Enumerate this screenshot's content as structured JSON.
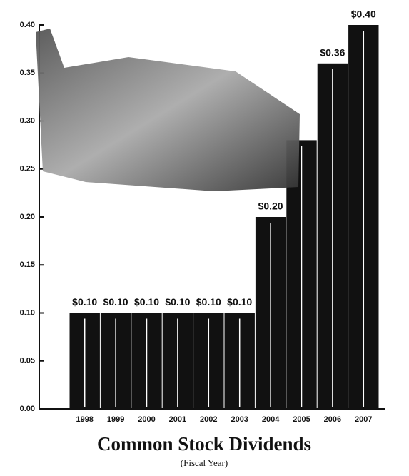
{
  "chart_data": {
    "type": "bar",
    "title": "Common Stock Dividends",
    "subtitle": "(Fiscal Year)",
    "categories": [
      "1998",
      "1999",
      "2000",
      "2001",
      "2002",
      "2003",
      "2004",
      "2005",
      "2006",
      "2007"
    ],
    "values": [
      0.1,
      0.1,
      0.1,
      0.1,
      0.1,
      0.1,
      0.2,
      0.28,
      0.36,
      0.4
    ],
    "value_labels": [
      "$0.10",
      "$0.10",
      "$0.10",
      "$0.10",
      "$0.10",
      "$0.10",
      "$0.20",
      null,
      "$0.36",
      "$0.40"
    ],
    "color": "#111111",
    "ylim": [
      0,
      0.4
    ],
    "yticks": [
      {
        "value": 0,
        "label": "0.00"
      },
      {
        "value": 0.05,
        "label": "0.05"
      },
      {
        "value": 0.1,
        "label": "0.10"
      },
      {
        "value": 0.15,
        "label": "0.15"
      },
      {
        "value": 0.2,
        "label": "0.20"
      },
      {
        "value": 0.25,
        "label": "0.25"
      },
      {
        "value": 0.3,
        "label": "0.30"
      },
      {
        "value": 0.35,
        "label": "0.35"
      },
      {
        "value": 0.4,
        "label": "0.40"
      }
    ],
    "grid": false
  }
}
